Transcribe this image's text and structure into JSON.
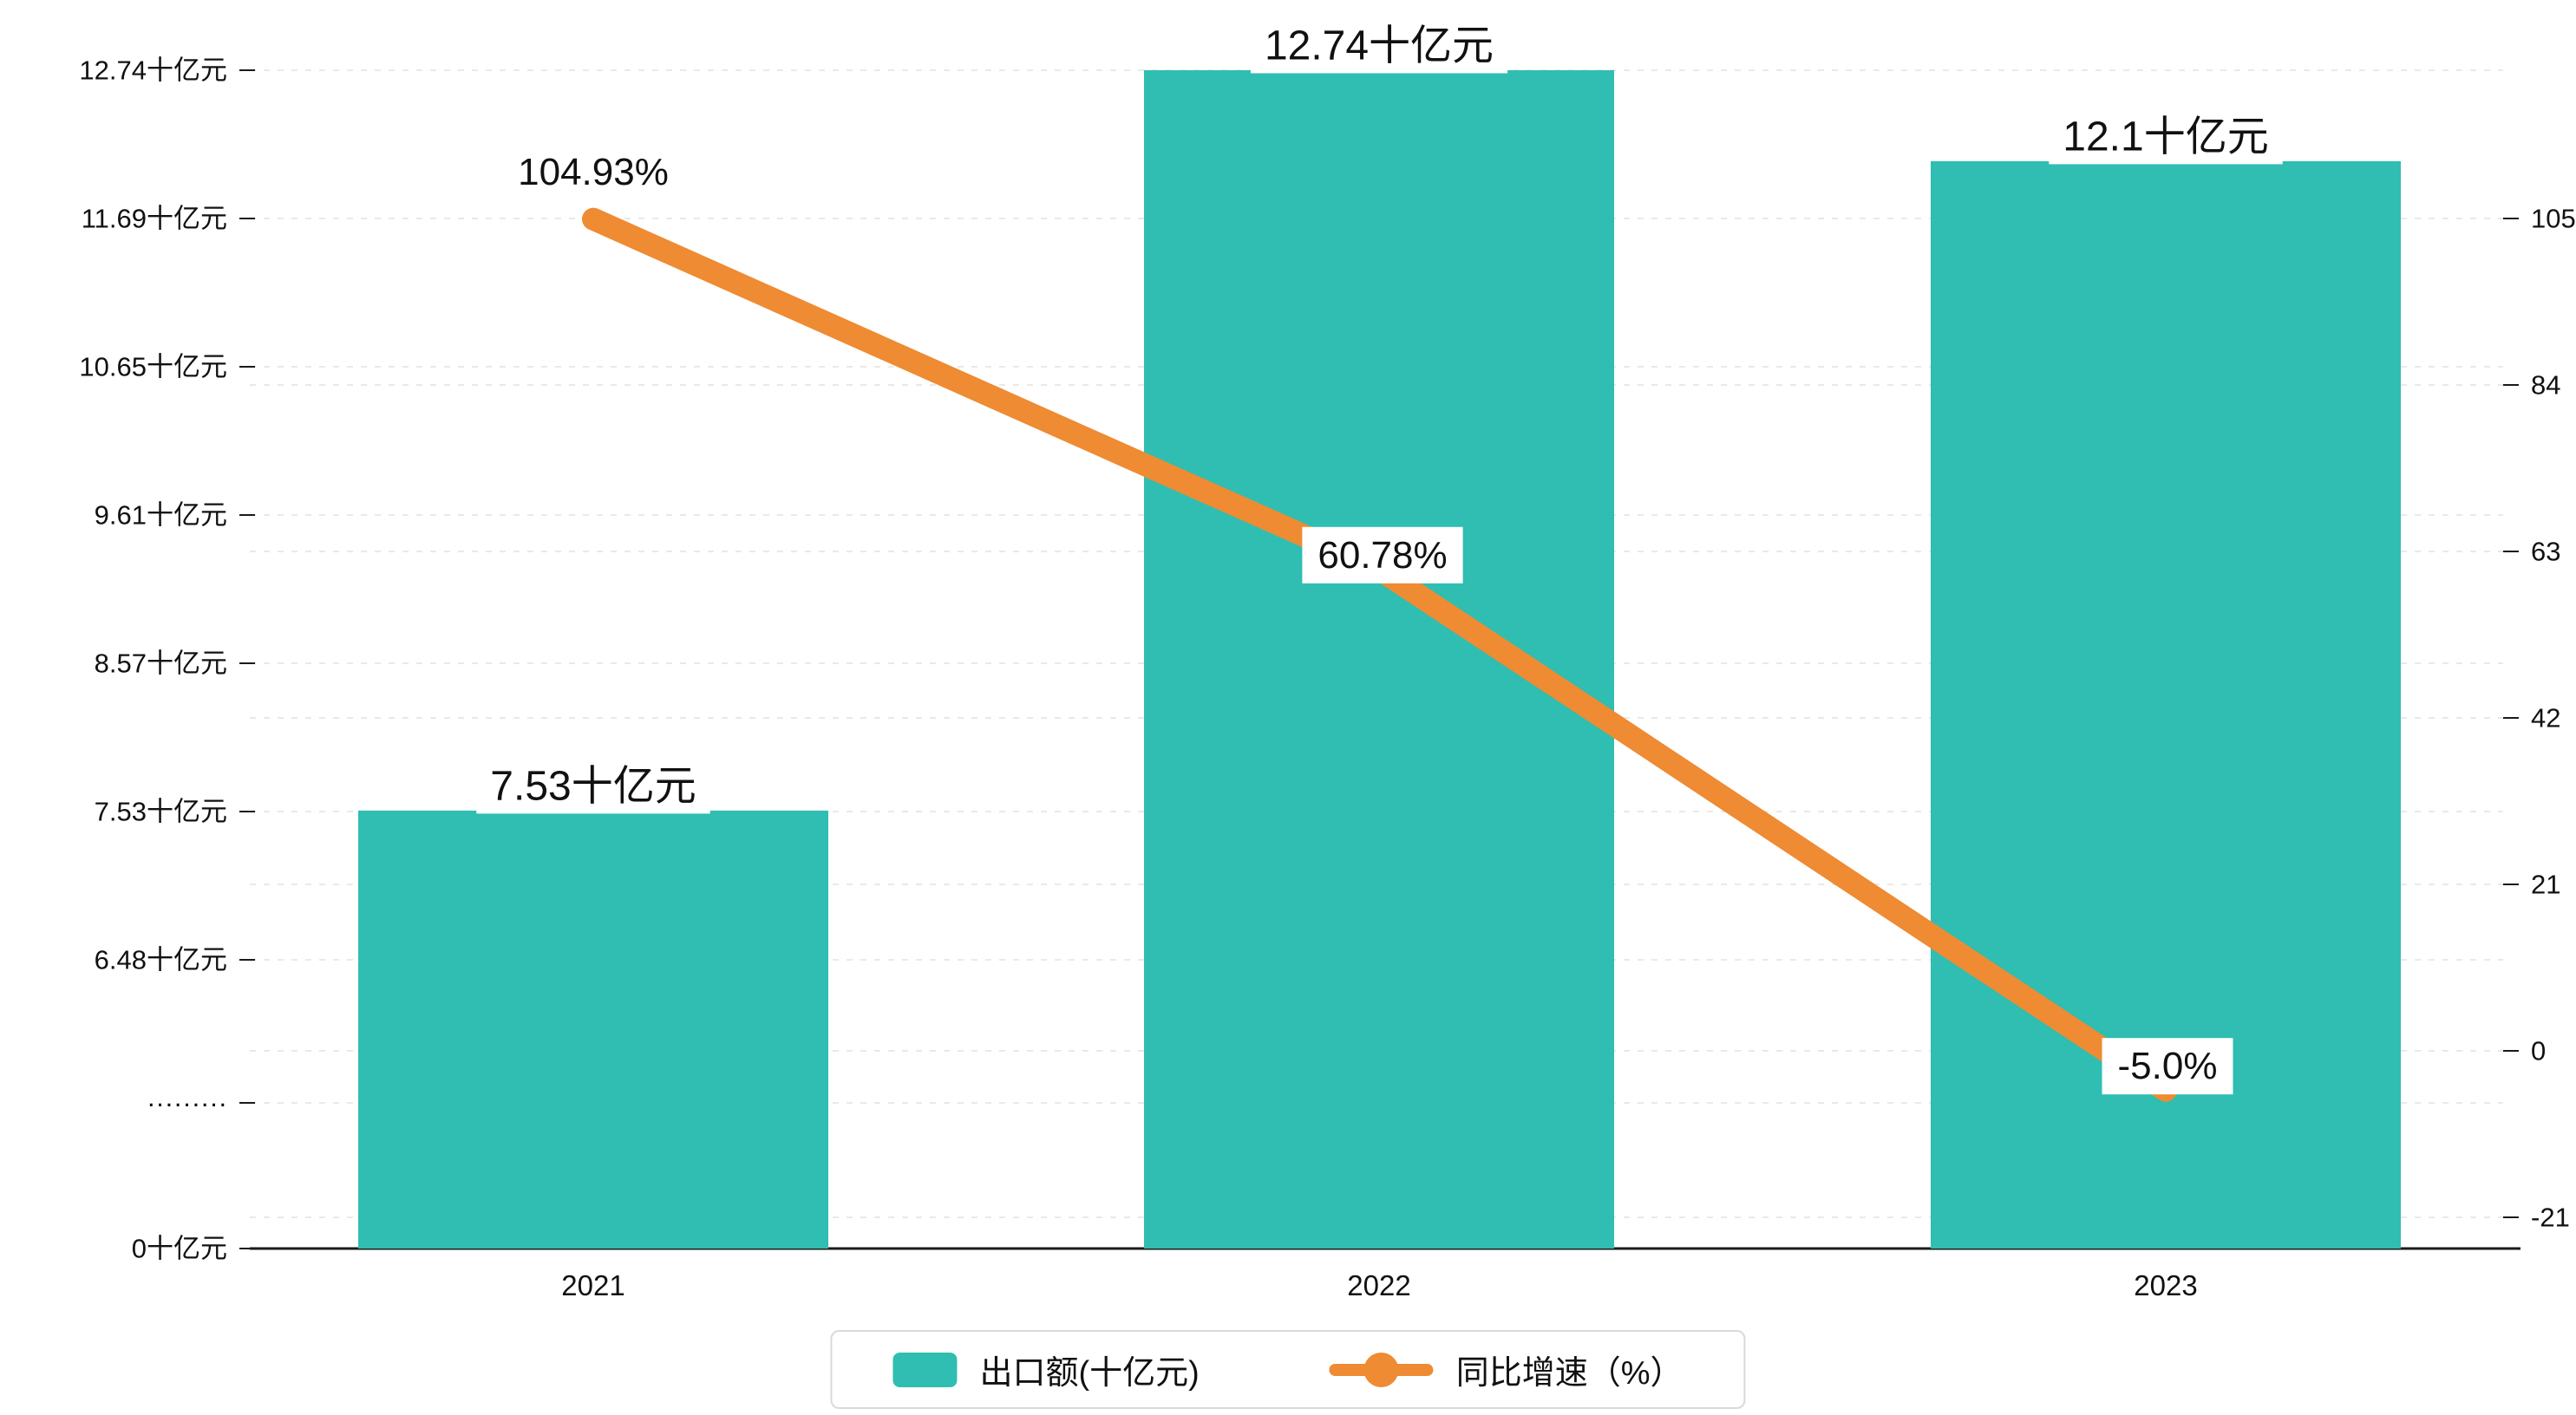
{
  "chart_data": {
    "type": "bar",
    "subtype": "bar-line-combo",
    "categories": [
      "2021",
      "2022",
      "2023"
    ],
    "series": [
      {
        "name": "出口额(十亿元)",
        "type": "bar",
        "unit": "十亿元",
        "values": [
          7.53,
          12.74,
          12.1
        ],
        "labels": [
          "7.53十亿元",
          "12.74十亿元",
          "12.1十亿元"
        ],
        "color": "#2FBEB1"
      },
      {
        "name": "同比增速（%）",
        "type": "line",
        "unit": "%",
        "values": [
          104.93,
          60.78,
          -5.0
        ],
        "labels": [
          "104.93%",
          "60.78%",
          "-5.0%"
        ],
        "color": "#EE8B33"
      }
    ],
    "left_axis": {
      "tick_labels": [
        "12.74十亿元",
        "11.69十亿元",
        "10.65十亿元",
        "9.61十亿元",
        "8.57十亿元",
        "7.53十亿元",
        "6.48十亿元",
        "·········",
        "0十亿元"
      ],
      "tick_values": [
        12.74,
        11.69,
        10.65,
        9.61,
        8.57,
        7.53,
        6.48,
        null,
        0
      ],
      "axis_break": true
    },
    "right_axis": {
      "tick_labels": [
        "105",
        "84",
        "63",
        "42",
        "21",
        "0",
        "-21"
      ],
      "tick_values": [
        105,
        84,
        63,
        42,
        21,
        0,
        -21
      ]
    },
    "grid": true,
    "legend_position": "bottom",
    "title": ""
  },
  "legend": {
    "items": [
      {
        "label": "出口额(十亿元)",
        "color": "#2FBEB1",
        "marker": "bar"
      },
      {
        "label": "同比增速（%）",
        "color": "#EE8B33",
        "marker": "line"
      }
    ]
  },
  "colors": {
    "bar": "#2FBEB1",
    "line": "#EE8B33",
    "grid": "#e9e9e9",
    "axis": "#1a1a1a",
    "text": "#111111"
  }
}
